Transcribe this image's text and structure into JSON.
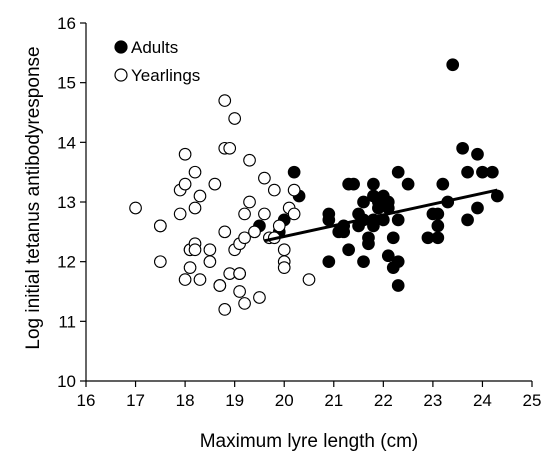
{
  "chart_data": {
    "type": "scatter",
    "xlabel": "Maximum lyre length (cm)",
    "ylabel": "Log initial tetanus antibodyresponse",
    "xlim": [
      16,
      25
    ],
    "ylim": [
      10,
      16
    ],
    "xticks": [
      16,
      17,
      18,
      19,
      20,
      21,
      22,
      23,
      24,
      25
    ],
    "yticks": [
      10,
      11,
      12,
      13,
      14,
      15,
      16
    ],
    "grid": false,
    "legend_position": "top-left",
    "series": [
      {
        "name": "Adults",
        "marker": "filled-circle",
        "points": [
          [
            19.5,
            12.6
          ],
          [
            19.9,
            12.5
          ],
          [
            20.0,
            12.7
          ],
          [
            20.2,
            13.5
          ],
          [
            20.3,
            13.1
          ],
          [
            20.9,
            12.7
          ],
          [
            20.9,
            12.8
          ],
          [
            20.9,
            12.0
          ],
          [
            21.1,
            12.5
          ],
          [
            21.2,
            12.6
          ],
          [
            21.2,
            12.5
          ],
          [
            21.3,
            13.3
          ],
          [
            21.3,
            12.2
          ],
          [
            21.4,
            13.3
          ],
          [
            21.5,
            12.8
          ],
          [
            21.5,
            12.6
          ],
          [
            21.6,
            12.7
          ],
          [
            21.6,
            12.0
          ],
          [
            21.6,
            13.0
          ],
          [
            21.7,
            12.3
          ],
          [
            21.7,
            12.4
          ],
          [
            21.8,
            12.6
          ],
          [
            21.8,
            12.7
          ],
          [
            21.8,
            13.1
          ],
          [
            21.8,
            13.3
          ],
          [
            21.9,
            13.0
          ],
          [
            21.9,
            12.9
          ],
          [
            22.0,
            13.1
          ],
          [
            22.0,
            12.7
          ],
          [
            22.1,
            12.1
          ],
          [
            22.1,
            12.9
          ],
          [
            22.1,
            13.0
          ],
          [
            22.2,
            12.4
          ],
          [
            22.2,
            11.9
          ],
          [
            22.3,
            12.0
          ],
          [
            22.3,
            11.6
          ],
          [
            22.3,
            12.7
          ],
          [
            22.3,
            13.5
          ],
          [
            22.5,
            13.3
          ],
          [
            22.9,
            12.4
          ],
          [
            23.0,
            12.8
          ],
          [
            23.1,
            12.8
          ],
          [
            23.1,
            12.6
          ],
          [
            23.1,
            12.4
          ],
          [
            23.2,
            13.3
          ],
          [
            23.3,
            13.0
          ],
          [
            23.4,
            15.3
          ],
          [
            23.6,
            13.9
          ],
          [
            23.7,
            12.7
          ],
          [
            23.7,
            13.5
          ],
          [
            23.9,
            13.8
          ],
          [
            23.9,
            12.9
          ],
          [
            24.0,
            13.5
          ],
          [
            24.2,
            13.5
          ],
          [
            24.3,
            13.1
          ]
        ]
      },
      {
        "name": "Yearlings",
        "marker": "open-circle",
        "points": [
          [
            17.0,
            12.9
          ],
          [
            17.5,
            12.6
          ],
          [
            17.5,
            12.6
          ],
          [
            17.5,
            12.0
          ],
          [
            17.9,
            13.2
          ],
          [
            17.9,
            12.8
          ],
          [
            18.0,
            13.8
          ],
          [
            18.0,
            13.3
          ],
          [
            18.0,
            11.7
          ],
          [
            18.1,
            12.2
          ],
          [
            18.1,
            11.9
          ],
          [
            18.1,
            12.2
          ],
          [
            18.2,
            12.3
          ],
          [
            18.2,
            12.2
          ],
          [
            18.2,
            12.9
          ],
          [
            18.2,
            13.5
          ],
          [
            18.3,
            13.1
          ],
          [
            18.3,
            11.7
          ],
          [
            18.5,
            12.0
          ],
          [
            18.5,
            12.2
          ],
          [
            18.6,
            13.3
          ],
          [
            18.7,
            11.6
          ],
          [
            18.7,
            11.6
          ],
          [
            18.8,
            14.7
          ],
          [
            18.8,
            13.9
          ],
          [
            18.8,
            12.5
          ],
          [
            18.8,
            11.2
          ],
          [
            18.9,
            11.8
          ],
          [
            18.9,
            13.9
          ],
          [
            19.0,
            14.4
          ],
          [
            19.0,
            12.2
          ],
          [
            19.1,
            11.8
          ],
          [
            19.1,
            11.5
          ],
          [
            19.1,
            11.8
          ],
          [
            19.1,
            12.3
          ],
          [
            19.2,
            12.8
          ],
          [
            19.2,
            11.3
          ],
          [
            19.2,
            12.4
          ],
          [
            19.3,
            13.7
          ],
          [
            19.3,
            13.0
          ],
          [
            19.4,
            12.5
          ],
          [
            19.5,
            11.4
          ],
          [
            19.6,
            13.4
          ],
          [
            19.6,
            12.8
          ],
          [
            19.7,
            12.4
          ],
          [
            19.8,
            13.2
          ],
          [
            19.8,
            12.4
          ],
          [
            19.9,
            12.6
          ],
          [
            20.0,
            12.0
          ],
          [
            20.0,
            12.2
          ],
          [
            20.0,
            11.9
          ],
          [
            20.1,
            12.9
          ],
          [
            20.2,
            12.8
          ],
          [
            20.2,
            13.2
          ],
          [
            20.5,
            11.7
          ]
        ]
      }
    ],
    "trendline": {
      "label": "",
      "from": [
        19.6,
        12.35
      ],
      "to": [
        24.3,
        13.2
      ]
    }
  }
}
